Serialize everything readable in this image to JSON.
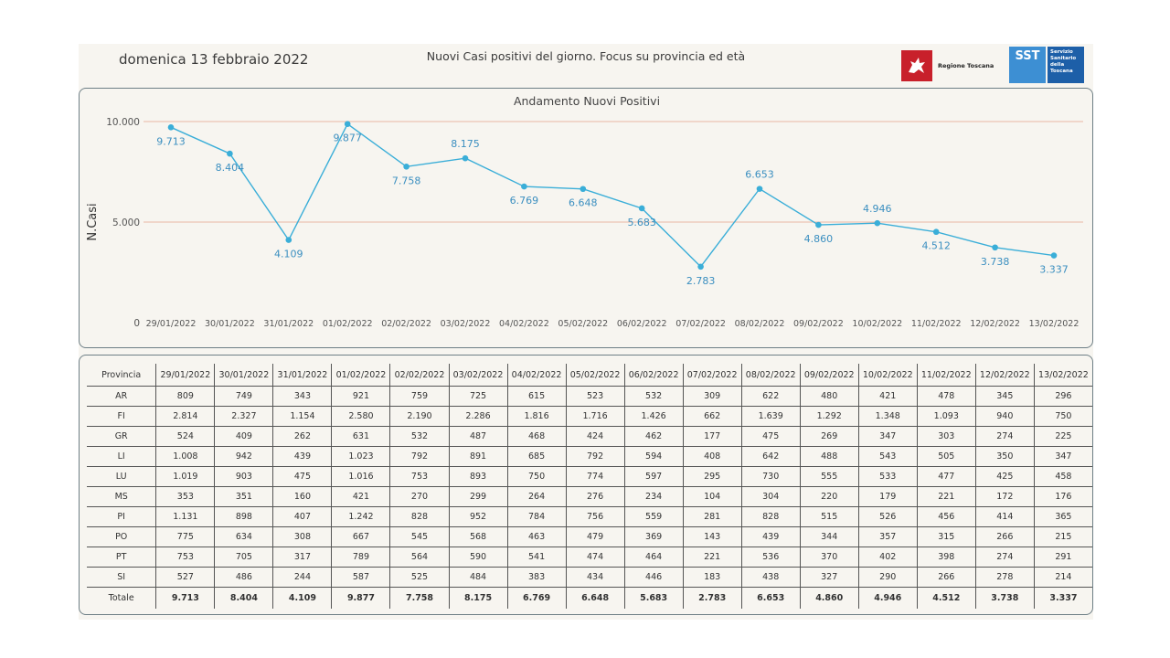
{
  "header": {
    "date": "domenica 13 febbraio 2022",
    "title": "Nuovi Casi positivi del giorno. Focus su provincia ed età",
    "logo_regione": "Regione Toscana",
    "logo_sst": "SST",
    "logo_sst_text": "Servizio Sanitario della Toscana"
  },
  "colors": {
    "line": "#3aaed8",
    "gridline": "#e8b6a4",
    "border": "#6e7f86"
  },
  "chart_data": {
    "type": "line",
    "title": "Andamento Nuovi Positivi",
    "ylabel": "N.Casi",
    "ylim": [
      0,
      10000
    ],
    "yticks": [
      "0",
      "5.000",
      "10.000"
    ],
    "categories": [
      "29/01/2022",
      "30/01/2022",
      "31/01/2022",
      "01/02/2022",
      "02/02/2022",
      "03/02/2022",
      "04/02/2022",
      "05/02/2022",
      "06/02/2022",
      "07/02/2022",
      "08/02/2022",
      "09/02/2022",
      "10/02/2022",
      "11/02/2022",
      "12/02/2022",
      "13/02/2022"
    ],
    "values": [
      9713,
      8404,
      4109,
      9877,
      7758,
      8175,
      6769,
      6648,
      5683,
      2783,
      6653,
      4860,
      4946,
      4512,
      3738,
      3337
    ],
    "labels": [
      "9.713",
      "8.404",
      "4.109",
      "9.877",
      "7.758",
      "8.175",
      "6.769",
      "6.648",
      "5.683",
      "2.783",
      "6.653",
      "4.860",
      "4.946",
      "4.512",
      "3.738",
      "3.337"
    ],
    "grid": "horizontal"
  },
  "table": {
    "header_label": "Provincia",
    "dates": [
      "29/01/2022",
      "30/01/2022",
      "31/01/2022",
      "01/02/2022",
      "02/02/2022",
      "03/02/2022",
      "04/02/2022",
      "05/02/2022",
      "06/02/2022",
      "07/02/2022",
      "08/02/2022",
      "09/02/2022",
      "10/02/2022",
      "11/02/2022",
      "12/02/2022",
      "13/02/2022"
    ],
    "rows": [
      {
        "name": "AR",
        "values": [
          "809",
          "749",
          "343",
          "921",
          "759",
          "725",
          "615",
          "523",
          "532",
          "309",
          "622",
          "480",
          "421",
          "478",
          "345",
          "296"
        ]
      },
      {
        "name": "FI",
        "values": [
          "2.814",
          "2.327",
          "1.154",
          "2.580",
          "2.190",
          "2.286",
          "1.816",
          "1.716",
          "1.426",
          "662",
          "1.639",
          "1.292",
          "1.348",
          "1.093",
          "940",
          "750"
        ]
      },
      {
        "name": "GR",
        "values": [
          "524",
          "409",
          "262",
          "631",
          "532",
          "487",
          "468",
          "424",
          "462",
          "177",
          "475",
          "269",
          "347",
          "303",
          "274",
          "225"
        ]
      },
      {
        "name": "LI",
        "values": [
          "1.008",
          "942",
          "439",
          "1.023",
          "792",
          "891",
          "685",
          "792",
          "594",
          "408",
          "642",
          "488",
          "543",
          "505",
          "350",
          "347"
        ]
      },
      {
        "name": "LU",
        "values": [
          "1.019",
          "903",
          "475",
          "1.016",
          "753",
          "893",
          "750",
          "774",
          "597",
          "295",
          "730",
          "555",
          "533",
          "477",
          "425",
          "458"
        ]
      },
      {
        "name": "MS",
        "values": [
          "353",
          "351",
          "160",
          "421",
          "270",
          "299",
          "264",
          "276",
          "234",
          "104",
          "304",
          "220",
          "179",
          "221",
          "172",
          "176"
        ]
      },
      {
        "name": "PI",
        "values": [
          "1.131",
          "898",
          "407",
          "1.242",
          "828",
          "952",
          "784",
          "756",
          "559",
          "281",
          "828",
          "515",
          "526",
          "456",
          "414",
          "365"
        ]
      },
      {
        "name": "PO",
        "values": [
          "775",
          "634",
          "308",
          "667",
          "545",
          "568",
          "463",
          "479",
          "369",
          "143",
          "439",
          "344",
          "357",
          "315",
          "266",
          "215"
        ]
      },
      {
        "name": "PT",
        "values": [
          "753",
          "705",
          "317",
          "789",
          "564",
          "590",
          "541",
          "474",
          "464",
          "221",
          "536",
          "370",
          "402",
          "398",
          "274",
          "291"
        ]
      },
      {
        "name": "SI",
        "values": [
          "527",
          "486",
          "244",
          "587",
          "525",
          "484",
          "383",
          "434",
          "446",
          "183",
          "438",
          "327",
          "290",
          "266",
          "278",
          "214"
        ]
      }
    ],
    "total": {
      "name": "Totale",
      "values": [
        "9.713",
        "8.404",
        "4.109",
        "9.877",
        "7.758",
        "8.175",
        "6.769",
        "6.648",
        "5.683",
        "2.783",
        "6.653",
        "4.860",
        "4.946",
        "4.512",
        "3.738",
        "3.337"
      ]
    }
  }
}
